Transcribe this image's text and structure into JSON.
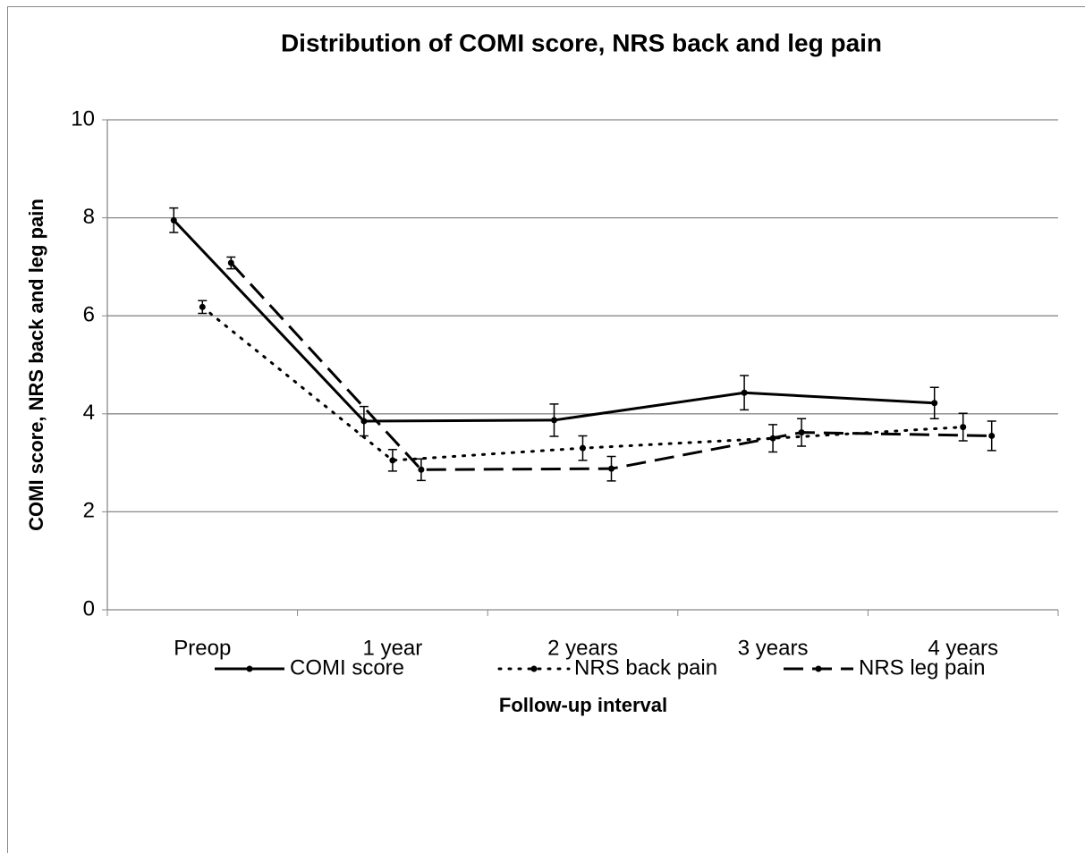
{
  "chart_data": {
    "type": "line",
    "title": "Distribution of COMI score, NRS back and leg pain",
    "x_label": "Follow-up interval",
    "y_label": "COMI score, NRS back and leg pain",
    "categories": [
      "Preop",
      "1 year",
      "2 years",
      "3 years",
      "4 years"
    ],
    "series": [
      {
        "name": "COMI score",
        "color": "#000000",
        "dash": "solid",
        "values": [
          7.95,
          3.85,
          3.87,
          4.43,
          4.22
        ],
        "errors": [
          0.25,
          0.3,
          0.33,
          0.35,
          0.32
        ]
      },
      {
        "name": "NRS back pain",
        "color": "#000000",
        "dash": "dotted",
        "values": [
          6.18,
          3.05,
          3.3,
          3.5,
          3.73
        ],
        "errors": [
          0.13,
          0.22,
          0.25,
          0.28,
          0.28
        ]
      },
      {
        "name": "NRS leg pain",
        "color": "#000000",
        "dash": "dashed",
        "values": [
          7.08,
          2.86,
          2.88,
          3.62,
          3.55
        ],
        "errors": [
          0.12,
          0.22,
          0.25,
          0.28,
          0.3
        ]
      }
    ],
    "ylim": [
      0,
      10
    ],
    "yticks": [
      0,
      2,
      4,
      6,
      8,
      10
    ],
    "grid": true,
    "legend": "bottom"
  }
}
